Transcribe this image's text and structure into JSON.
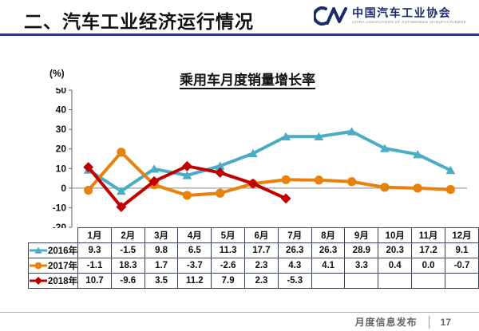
{
  "header": {
    "title": "二、汽车工业经济运行情况"
  },
  "logo": {
    "mark": "CM",
    "name_cn": "中国汽车工业协会",
    "name_en": "CHINA ASSOCIATION OF AUTOMOBILE MANUFACTURERS"
  },
  "chart_data": {
    "type": "line",
    "title": "乘用车月度销量增长率",
    "unit_label": "(%)",
    "categories": [
      "1月",
      "2月",
      "3月",
      "4月",
      "5月",
      "6月",
      "7月",
      "8月",
      "9月",
      "10月",
      "11月",
      "12月"
    ],
    "yticks": [
      50,
      40,
      30,
      20,
      10,
      0,
      -10,
      -20
    ],
    "ylim": [
      -20,
      50
    ],
    "grid": "zero-line-only",
    "legend_position": "table-row-labels",
    "series": [
      {
        "name": "2016年",
        "color": "#4BACC6",
        "marker": "triangle",
        "values": [
          9.3,
          -1.5,
          9.8,
          6.5,
          11.3,
          17.7,
          26.3,
          26.3,
          28.9,
          20.3,
          17.2,
          9.1
        ]
      },
      {
        "name": "2017年",
        "color": "#E8820D",
        "marker": "circle",
        "values": [
          -1.1,
          18.3,
          1.7,
          -3.7,
          -2.6,
          2.3,
          4.3,
          4.1,
          3.3,
          0.4,
          0.0,
          -0.7
        ]
      },
      {
        "name": "2018年",
        "color": "#C00000",
        "marker": "diamond",
        "values": [
          10.7,
          -9.6,
          3.5,
          11.2,
          7.9,
          2.3,
          -5.3,
          null,
          null,
          null,
          null,
          null
        ]
      }
    ]
  },
  "table": {
    "columns": [
      "",
      "1月",
      "2月",
      "3月",
      "4月",
      "5月",
      "6月",
      "7月",
      "8月",
      "9月",
      "10月",
      "11月",
      "12月"
    ],
    "rows": [
      {
        "label": "2016年",
        "cells": [
          "9.3",
          "-1.5",
          "9.8",
          "6.5",
          "11.3",
          "17.7",
          "26.3",
          "26.3",
          "28.9",
          "20.3",
          "17.2",
          "9.1"
        ]
      },
      {
        "label": "2017年",
        "cells": [
          "-1.1",
          "18.3",
          "1.7",
          "-3.7",
          "-2.6",
          "2.3",
          "4.3",
          "4.1",
          "3.3",
          "0.4",
          "0.0",
          "-0.7"
        ]
      },
      {
        "label": "2018年",
        "cells": [
          "10.7",
          "-9.6",
          "3.5",
          "11.2",
          "7.9",
          "2.3",
          "-5.3",
          "",
          "",
          "",
          "",
          ""
        ]
      }
    ]
  },
  "footer": {
    "label": "月度信息发布",
    "page": "17"
  },
  "colors": {
    "header_rule": "#2B3990",
    "logo_navy": "#1B2A6B",
    "axis": "#666666",
    "zero_line": "#888888",
    "table_border": "#3a4458",
    "footer_text": "#666666"
  }
}
